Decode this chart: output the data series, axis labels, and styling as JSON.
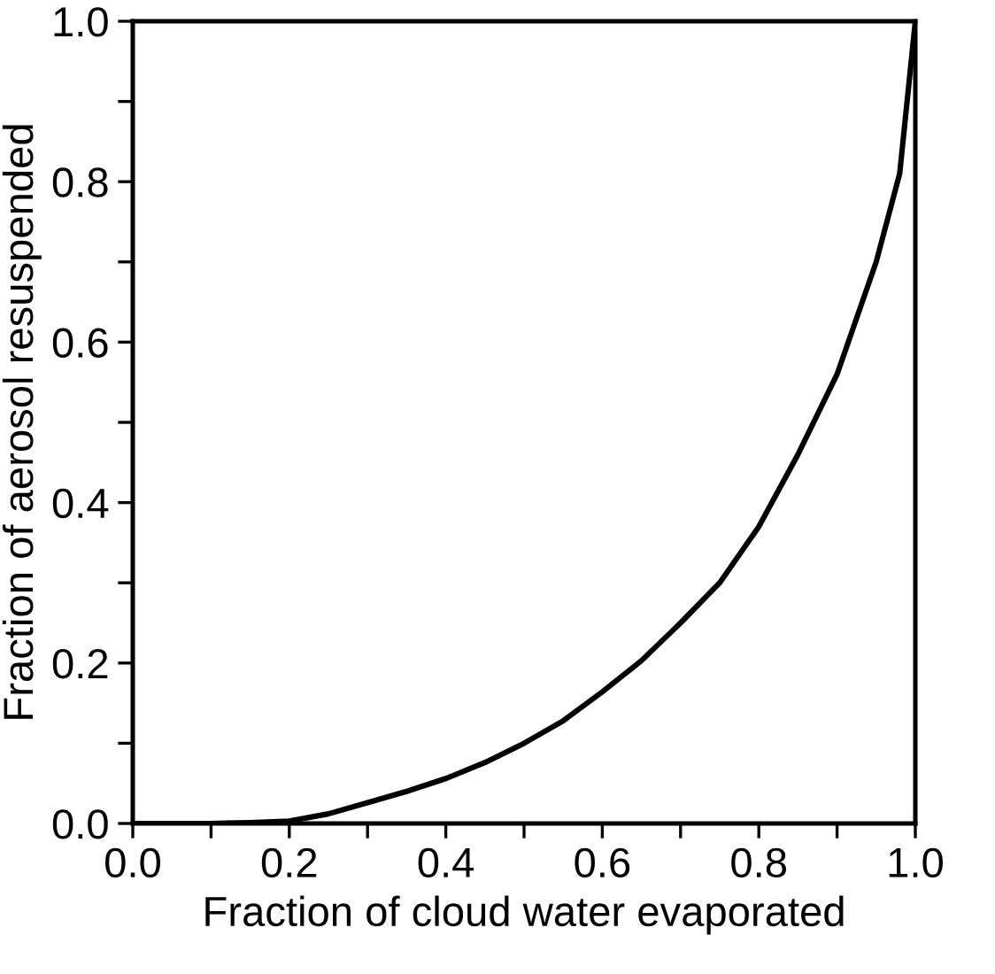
{
  "chart_data": {
    "type": "line",
    "xlabel": "Fraction of cloud water evaporated",
    "ylabel": "Fraction of aerosol resuspended",
    "x": [
      0.0,
      0.1,
      0.15,
      0.2,
      0.25,
      0.3,
      0.35,
      0.4,
      0.45,
      0.5,
      0.55,
      0.6,
      0.65,
      0.7,
      0.75,
      0.8,
      0.85,
      0.9,
      0.95,
      0.98,
      1.0
    ],
    "series": [
      {
        "color": "#000000",
        "values": [
          0.0,
          0.0,
          0.001,
          0.003,
          0.012,
          0.026,
          0.04,
          0.056,
          0.076,
          0.1,
          0.128,
          0.164,
          0.203,
          0.25,
          0.3,
          0.37,
          0.46,
          0.56,
          0.7,
          0.81,
          1.0
        ]
      }
    ],
    "xlim": [
      0.0,
      1.0
    ],
    "ylim": [
      0.0,
      1.0
    ],
    "xticks": [
      "0.0",
      {
        "value": 0.1,
        "label": null
      },
      0.2,
      {
        "value": 0.3,
        "label": null
      },
      0.4,
      {
        "value": 0.5,
        "label": null
      },
      0.6,
      {
        "value": 0.7,
        "label": null
      },
      0.8,
      {
        "value": 0.9,
        "label": null
      },
      "1.0"
    ],
    "yticks": [
      "0.0",
      {
        "value": 0.1,
        "label": null
      },
      0.2,
      {
        "value": 0.3,
        "label": null
      },
      0.4,
      {
        "value": 0.5,
        "label": null
      },
      0.6,
      {
        "value": 0.7,
        "label": null
      },
      0.8,
      {
        "value": 0.9,
        "label": null
      },
      "1.0"
    ],
    "grid": false,
    "legend": false,
    "marker": "none",
    "line_style": "solid"
  }
}
